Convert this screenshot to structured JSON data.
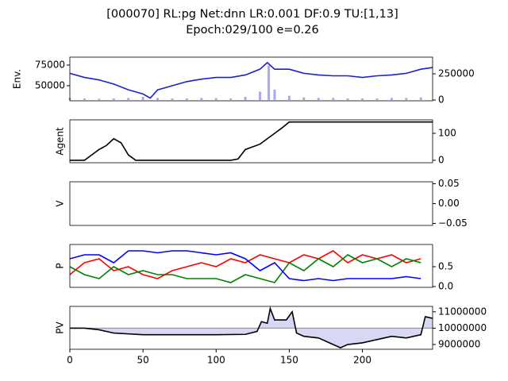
{
  "chart_data": [
    {
      "type": "line",
      "title": "[000070] RL:pg Net:dnn LR:0.001 DF:0.9 TU:[1,13]",
      "subtitle": "Epoch:029/100 e=0.26",
      "ylabel": "Env.",
      "xlim": [
        0,
        248
      ],
      "ylim": [
        31700,
        84600
      ],
      "yticks": [
        50000,
        75000
      ],
      "y2lim": [
        -7600,
        409000
      ],
      "y2ticks": [
        0,
        250000
      ],
      "series": [
        {
          "type": "line",
          "color": "#1f1fcc",
          "x": [
            0,
            10,
            20,
            30,
            40,
            50,
            55,
            60,
            70,
            80,
            90,
            100,
            110,
            120,
            130,
            135,
            140,
            150,
            160,
            170,
            180,
            190,
            200,
            210,
            220,
            230,
            240,
            248
          ],
          "values": [
            65000,
            60000,
            57000,
            52000,
            45000,
            40000,
            35000,
            45000,
            50000,
            55000,
            58000,
            60000,
            60000,
            63000,
            70000,
            78000,
            70000,
            70000,
            65000,
            63000,
            62000,
            62000,
            60000,
            62000,
            63000,
            65000,
            70000,
            72000
          ]
        },
        {
          "type": "bar",
          "axis": "y2",
          "color": "#a8a8f0",
          "x": [
            0,
            10,
            20,
            30,
            40,
            50,
            60,
            70,
            80,
            90,
            100,
            110,
            120,
            130,
            136,
            140,
            150,
            160,
            170,
            180,
            190,
            200,
            210,
            220,
            230,
            240
          ],
          "values": [
            20000,
            15000,
            12000,
            15000,
            20000,
            30000,
            20000,
            15000,
            15000,
            20000,
            18000,
            15000,
            30000,
            80000,
            330000,
            100000,
            40000,
            25000,
            20000,
            20000,
            15000,
            15000,
            15000,
            20000,
            20000,
            25000
          ]
        }
      ]
    },
    {
      "type": "line",
      "ylabel": "Agent",
      "xlim": [
        0,
        248
      ],
      "ylim": [
        -9,
        150
      ],
      "yticks": [
        0,
        100
      ],
      "series": [
        {
          "type": "line",
          "color": "#000000",
          "x": [
            0,
            10,
            15,
            20,
            25,
            30,
            35,
            40,
            45,
            60,
            80,
            100,
            110,
            115,
            120,
            125,
            130,
            135,
            140,
            145,
            150,
            160,
            200,
            248
          ],
          "values": [
            0,
            0,
            20,
            40,
            55,
            80,
            65,
            20,
            0,
            0,
            0,
            0,
            0,
            5,
            40,
            50,
            60,
            80,
            100,
            120,
            142,
            142,
            142,
            142
          ]
        }
      ]
    },
    {
      "type": "line",
      "ylabel": "V",
      "xlim": [
        0,
        248
      ],
      "ylim": [
        -0.055,
        0.055
      ],
      "yticks": [
        {
          "value": 0.05,
          "label": "0.05"
        },
        {
          "value": 0,
          "label": "0.00"
        },
        {
          "value": -0.05,
          "label": "−0.05"
        }
      ],
      "series": []
    },
    {
      "type": "line",
      "ylabel": "P",
      "xlim": [
        0,
        248
      ],
      "ylim": [
        -0.02,
        1.06
      ],
      "yticks": [
        {
          "value": 0,
          "label": "0.0"
        },
        0.5
      ],
      "series": [
        {
          "type": "line",
          "color": "#ff0000",
          "x": [
            0,
            10,
            20,
            30,
            40,
            50,
            60,
            70,
            80,
            90,
            100,
            110,
            120,
            130,
            140,
            150,
            160,
            170,
            180,
            190,
            200,
            210,
            220,
            230,
            240
          ],
          "values": [
            0.3,
            0.6,
            0.7,
            0.4,
            0.5,
            0.3,
            0.2,
            0.4,
            0.5,
            0.6,
            0.5,
            0.7,
            0.6,
            0.8,
            0.7,
            0.6,
            0.8,
            0.7,
            0.9,
            0.6,
            0.8,
            0.7,
            0.8,
            0.6,
            0.7
          ]
        },
        {
          "type": "line",
          "color": "#008000",
          "x": [
            0,
            10,
            20,
            30,
            40,
            50,
            60,
            70,
            80,
            90,
            100,
            110,
            120,
            130,
            140,
            150,
            160,
            170,
            180,
            190,
            200,
            210,
            220,
            230,
            240
          ],
          "values": [
            0.5,
            0.3,
            0.2,
            0.5,
            0.3,
            0.4,
            0.3,
            0.3,
            0.2,
            0.2,
            0.2,
            0.1,
            0.3,
            0.2,
            0.1,
            0.6,
            0.4,
            0.7,
            0.5,
            0.8,
            0.6,
            0.7,
            0.5,
            0.7,
            0.6
          ]
        },
        {
          "type": "line",
          "color": "#0000ff",
          "x": [
            0,
            10,
            20,
            30,
            40,
            50,
            60,
            70,
            80,
            90,
            100,
            110,
            120,
            130,
            140,
            150,
            160,
            170,
            180,
            190,
            200,
            210,
            220,
            230,
            240
          ],
          "values": [
            0.7,
            0.8,
            0.8,
            0.6,
            0.9,
            0.9,
            0.85,
            0.9,
            0.9,
            0.85,
            0.8,
            0.85,
            0.7,
            0.4,
            0.6,
            0.2,
            0.15,
            0.2,
            0.15,
            0.2,
            0.2,
            0.2,
            0.2,
            0.25,
            0.2
          ]
        }
      ]
    },
    {
      "type": "line",
      "ylabel": "PV",
      "xlim": [
        0,
        248
      ],
      "ylim": [
        8710000,
        11330000
      ],
      "yticks": [
        9000000,
        10000000,
        11000000
      ],
      "xticks": [
        0,
        50,
        100,
        150,
        200
      ],
      "baseline": 10000000,
      "fill_color": "#d8d8f5",
      "series": [
        {
          "type": "line",
          "color": "#000000",
          "x": [
            0,
            10,
            20,
            30,
            40,
            50,
            100,
            120,
            128,
            131,
            135,
            137,
            140,
            148,
            152,
            155,
            160,
            170,
            180,
            185,
            190,
            200,
            210,
            220,
            230,
            240,
            243,
            248
          ],
          "values": [
            10000000,
            10000000,
            9900000,
            9700000,
            9650000,
            9600000,
            9600000,
            9620000,
            9800000,
            10400000,
            10300000,
            11200000,
            10500000,
            10500000,
            11000000,
            9700000,
            9500000,
            9400000,
            9000000,
            8800000,
            9000000,
            9100000,
            9300000,
            9500000,
            9400000,
            9600000,
            10700000,
            10600000
          ]
        }
      ]
    }
  ]
}
